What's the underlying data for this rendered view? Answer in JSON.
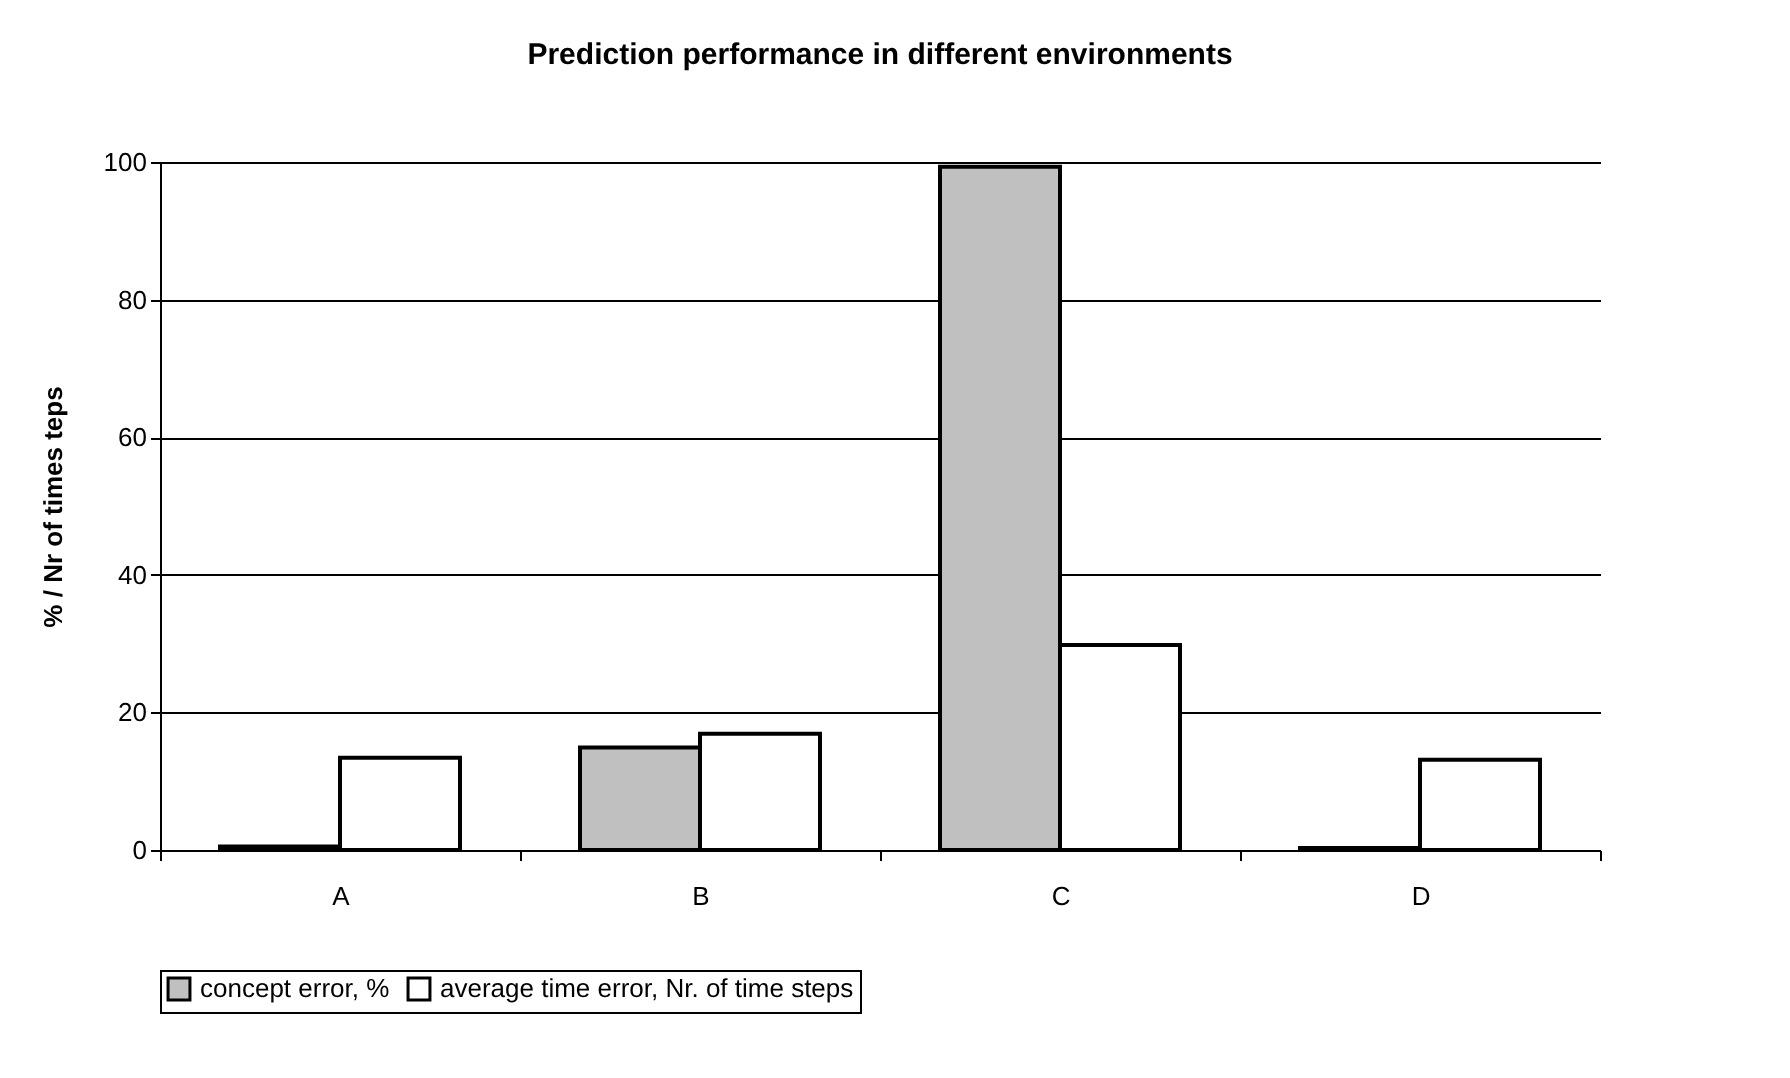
{
  "chart_data": {
    "type": "bar",
    "title": "Prediction performance in different environments",
    "ylabel": "% / Nr of times teps",
    "categories": [
      "A",
      "B",
      "C",
      "D"
    ],
    "series": [
      {
        "name": "concept error, %",
        "color": "#c0c0c0",
        "values": [
          0.5,
          14.9,
          99.3,
          0.3
        ]
      },
      {
        "name": "average time error, Nr. of time steps",
        "color": "#ffffff",
        "values": [
          13.4,
          16.9,
          29.8,
          13.1
        ]
      }
    ],
    "ylim": [
      0,
      100
    ],
    "yticks": [
      0,
      20,
      40,
      60,
      80,
      100
    ],
    "grid": "y",
    "legend": "bottom"
  }
}
